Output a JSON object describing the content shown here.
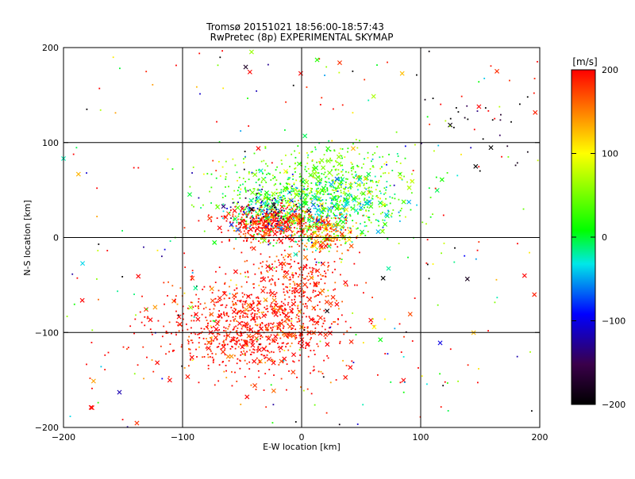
{
  "chart_data": {
    "type": "scatter",
    "title": "Tromsø 20151021 18:56:00-18:57:43",
    "subtitle": "RwPretec (8p) EXPERIMENTAL SKYMAP",
    "xlabel": "E-W location [km]",
    "ylabel": "N-S location [km]",
    "xlim": [
      -200,
      200
    ],
    "ylim": [
      -200,
      200
    ],
    "xticks": [
      -200,
      -100,
      0,
      100,
      200
    ],
    "yticks": [
      -200,
      -100,
      0,
      100,
      200
    ],
    "xtick_labels": [
      "−200",
      "−100",
      "0",
      "100",
      "200"
    ],
    "ytick_labels": [
      "−200",
      "−100",
      "0",
      "100",
      "200"
    ],
    "grid": true,
    "markers": [
      "dot",
      "x"
    ],
    "colorbar": {
      "label": "[m/s]",
      "range": [
        -200,
        200
      ],
      "ticks": [
        200,
        100,
        0,
        -100,
        -200
      ],
      "tick_labels": [
        "200",
        "100",
        "0",
        "−100",
        "−200"
      ],
      "colormap": [
        "#000000",
        "#3a004a",
        "#0000ff",
        "#00e8e8",
        "#00ff00",
        "#ffff00",
        "#ff0000"
      ]
    },
    "clusters": [
      {
        "center": [
          -45,
          -95
        ],
        "spread": [
          40,
          25
        ],
        "velocity": 200,
        "count": 900
      },
      {
        "center": [
          -25,
          15
        ],
        "spread": [
          20,
          10
        ],
        "velocity": 200,
        "count": 500
      },
      {
        "center": [
          -5,
          -45
        ],
        "spread": [
          20,
          20
        ],
        "velocity": 200,
        "count": 250
      },
      {
        "center": [
          15,
          50
        ],
        "spread": [
          40,
          22
        ],
        "velocity": 40,
        "count": 700
      },
      {
        "center": [
          10,
          30
        ],
        "spread": [
          35,
          20
        ],
        "velocity": -20,
        "count": 450
      },
      {
        "center": [
          20,
          5
        ],
        "spread": [
          12,
          10
        ],
        "velocity": 150,
        "count": 180
      },
      {
        "center": [
          -30,
          30
        ],
        "spread": [
          15,
          10
        ],
        "velocity": -150,
        "count": 70
      },
      {
        "center": [
          140,
          120
        ],
        "spread": [
          25,
          25
        ],
        "velocity": -190,
        "count": 25
      },
      {
        "center": [
          0,
          0
        ],
        "spread": [
          180,
          180
        ],
        "velocity": 0,
        "count": 300
      }
    ]
  }
}
